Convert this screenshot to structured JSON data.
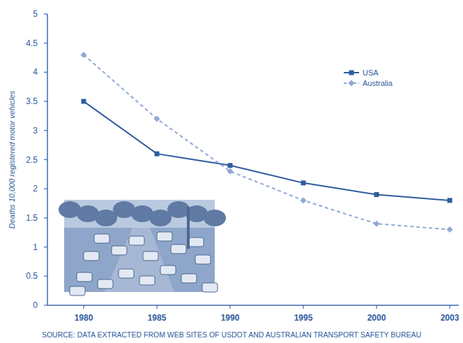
{
  "chart_data": {
    "type": "line",
    "y_label": "Deaths 10,000 registered motor vehicles",
    "source": "SOURCE: DATA EXTRACTED FROM WEB SITES OF USDOT AND AUSTRALIAN TRANSPORT SAFETY BUREAU",
    "categories": [
      "1980",
      "1985",
      "1990",
      "1995",
      "2000",
      "2003"
    ],
    "series": [
      {
        "name": "USA",
        "color": "#2f5c9e",
        "marker": "square",
        "line_style": "solid",
        "values": [
          3.5,
          2.6,
          2.4,
          2.1,
          1.9,
          1.8
        ]
      },
      {
        "name": "Australia",
        "color": "#8fa9d2",
        "marker": "diamond",
        "line_style": "dashed",
        "values": [
          4.3,
          3.2,
          2.3,
          1.8,
          1.4,
          1.3
        ]
      }
    ],
    "ylim": [
      0,
      5
    ],
    "yticks": [
      0,
      0.5,
      1,
      1.5,
      2,
      2.5,
      3,
      3.5,
      4,
      4.5,
      5
    ],
    "grid": false,
    "legend": "upper right"
  }
}
